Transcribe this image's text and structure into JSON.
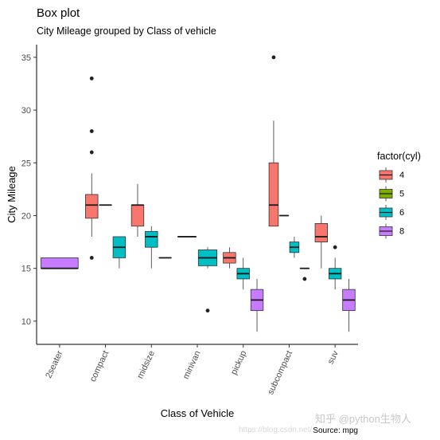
{
  "chart_data": {
    "type": "box",
    "title": "Box plot",
    "subtitle": "City Mileage grouped by Class of vehicle",
    "xlabel": "Class of Vehicle",
    "ylabel": "City Mileage",
    "caption": "Source: mpg",
    "ylim": [
      7.8,
      36.2
    ],
    "yticks": [
      10,
      15,
      20,
      25,
      30,
      35
    ],
    "categories": [
      "2seater",
      "compact",
      "midsize",
      "minivan",
      "pickup",
      "subcompact",
      "suv"
    ],
    "legend": {
      "title": "factor(cyl)",
      "position": "right",
      "entries": [
        {
          "label": "4",
          "color": "#F8766D"
        },
        {
          "label": "5",
          "color": "#7CAE00"
        },
        {
          "label": "6",
          "color": "#00BFC4"
        },
        {
          "label": "8",
          "color": "#C77CFF"
        }
      ]
    },
    "boxes": [
      {
        "category": "2seater",
        "group": "8",
        "slot": 0,
        "nslots": 1,
        "q1": 15,
        "median": 15,
        "q3": 16,
        "low": 15,
        "high": 16,
        "outliers": []
      },
      {
        "category": "compact",
        "group": "4",
        "slot": 0,
        "nslots": 3,
        "q1": 19.75,
        "median": 21,
        "q3": 22,
        "low": 18,
        "high": 24,
        "outliers": [
          16,
          26,
          28,
          33
        ]
      },
      {
        "category": "compact",
        "group": "5",
        "slot": 1,
        "nslots": 3,
        "q1": 21,
        "median": 21,
        "q3": 21,
        "low": 21,
        "high": 21,
        "outliers": []
      },
      {
        "category": "compact",
        "group": "6",
        "slot": 2,
        "nslots": 3,
        "q1": 16,
        "median": 17,
        "q3": 18,
        "low": 15,
        "high": 18,
        "outliers": []
      },
      {
        "category": "midsize",
        "group": "4",
        "slot": 0,
        "nslots": 3,
        "q1": 19,
        "median": 21,
        "q3": 21,
        "low": 18,
        "high": 23,
        "outliers": []
      },
      {
        "category": "midsize",
        "group": "6",
        "slot": 1,
        "nslots": 3,
        "q1": 17,
        "median": 18,
        "q3": 18.5,
        "low": 15,
        "high": 19,
        "outliers": []
      },
      {
        "category": "midsize",
        "group": "8",
        "slot": 2,
        "nslots": 3,
        "q1": 16,
        "median": 16,
        "q3": 16,
        "low": 16,
        "high": 16,
        "outliers": []
      },
      {
        "category": "minivan",
        "group": "4",
        "slot": 0,
        "nslots": 2,
        "q1": 18,
        "median": 18,
        "q3": 18,
        "low": 18,
        "high": 18,
        "outliers": []
      },
      {
        "category": "minivan",
        "group": "6",
        "slot": 1,
        "nslots": 2,
        "q1": 15.25,
        "median": 16,
        "q3": 16.75,
        "low": 15,
        "high": 17,
        "outliers": [
          11
        ]
      },
      {
        "category": "pickup",
        "group": "4",
        "slot": 0,
        "nslots": 3,
        "q1": 15.5,
        "median": 16,
        "q3": 16.5,
        "low": 15,
        "high": 17,
        "outliers": []
      },
      {
        "category": "pickup",
        "group": "6",
        "slot": 1,
        "nslots": 3,
        "q1": 14,
        "median": 14.5,
        "q3": 15,
        "low": 13,
        "high": 16,
        "outliers": []
      },
      {
        "category": "pickup",
        "group": "8",
        "slot": 2,
        "nslots": 3,
        "q1": 11,
        "median": 12,
        "q3": 13,
        "low": 9,
        "high": 14,
        "outliers": []
      },
      {
        "category": "subcompact",
        "group": "4",
        "slot": 0,
        "nslots": 4,
        "q1": 19,
        "median": 21,
        "q3": 25,
        "low": 19,
        "high": 29,
        "outliers": [
          35
        ]
      },
      {
        "category": "subcompact",
        "group": "5",
        "slot": 1,
        "nslots": 4,
        "q1": 20,
        "median": 20,
        "q3": 20,
        "low": 20,
        "high": 20,
        "outliers": []
      },
      {
        "category": "subcompact",
        "group": "6",
        "slot": 2,
        "nslots": 4,
        "q1": 16.5,
        "median": 17,
        "q3": 17.5,
        "low": 16,
        "high": 18,
        "outliers": []
      },
      {
        "category": "subcompact",
        "group": "8",
        "slot": 3,
        "nslots": 4,
        "q1": 15,
        "median": 15,
        "q3": 15,
        "low": 15,
        "high": 15,
        "outliers": [
          14
        ]
      },
      {
        "category": "suv",
        "group": "4",
        "slot": 0,
        "nslots": 3,
        "q1": 17.5,
        "median": 18,
        "q3": 19.25,
        "low": 15,
        "high": 20,
        "outliers": []
      },
      {
        "category": "suv",
        "group": "6",
        "slot": 1,
        "nslots": 3,
        "q1": 14,
        "median": 14.5,
        "q3": 15,
        "low": 13,
        "high": 16,
        "outliers": [
          17
        ]
      },
      {
        "category": "suv",
        "group": "8",
        "slot": 2,
        "nslots": 3,
        "q1": 11,
        "median": 12,
        "q3": 13,
        "low": 9,
        "high": 14,
        "outliers": []
      }
    ]
  },
  "watermark": {
    "text": "知乎 @python生物人",
    "url_text": "https://blog.csdn.net/..."
  }
}
